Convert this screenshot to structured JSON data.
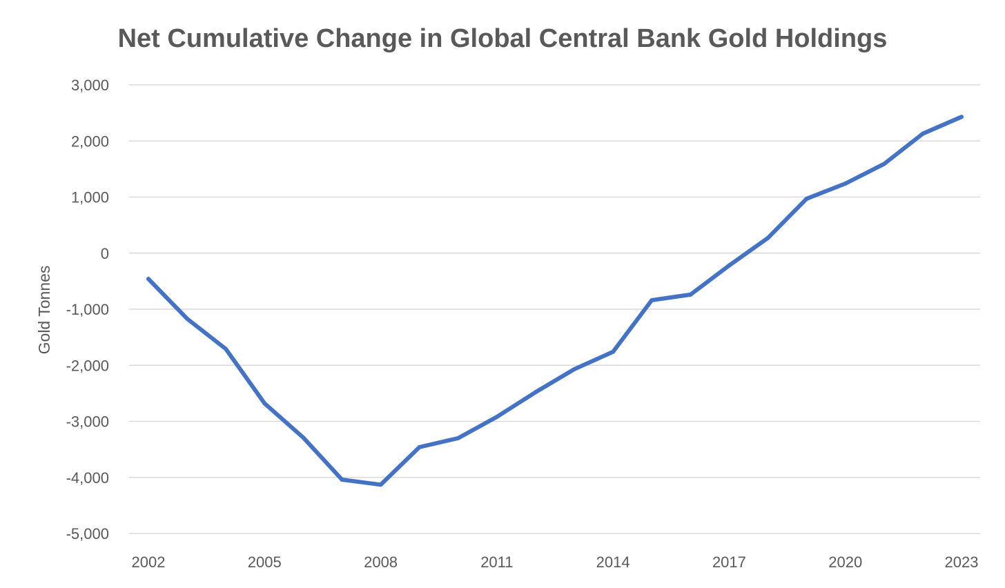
{
  "chart_data": {
    "type": "line",
    "title": "Net Cumulative Change in Global Central Bank Gold Holdings",
    "xlabel": "",
    "ylabel": "Gold Tonnes",
    "ylim": [
      -5000,
      3000
    ],
    "y_ticks": [
      3000,
      2000,
      1000,
      0,
      -1000,
      -2000,
      -3000,
      -4000,
      -5000
    ],
    "y_tick_labels": [
      "3,000",
      "2,000",
      "1,000",
      "0",
      "-1,000",
      "-2,000",
      "-3,000",
      "-4,000",
      "-5,000"
    ],
    "x_tick_labels": [
      "2002",
      "2005",
      "2008",
      "2011",
      "2014",
      "2017",
      "2020",
      "2023"
    ],
    "grid": true,
    "series": [
      {
        "name": "Net Cumulative Change",
        "color": "#4472c4",
        "x": [
          2002,
          2003,
          2004,
          2005,
          2006,
          2007,
          2008,
          2009,
          2010,
          2011,
          2012,
          2013,
          2014,
          2015,
          2016,
          2017,
          2018,
          2019,
          2020,
          2021,
          2022,
          2023
        ],
        "values": [
          -460,
          -1170,
          -1710,
          -2680,
          -3290,
          -4040,
          -4130,
          -3460,
          -3300,
          -2920,
          -2480,
          -2070,
          -1760,
          -840,
          -740,
          -220,
          270,
          970,
          1240,
          1590,
          2130,
          2430
        ]
      }
    ]
  }
}
